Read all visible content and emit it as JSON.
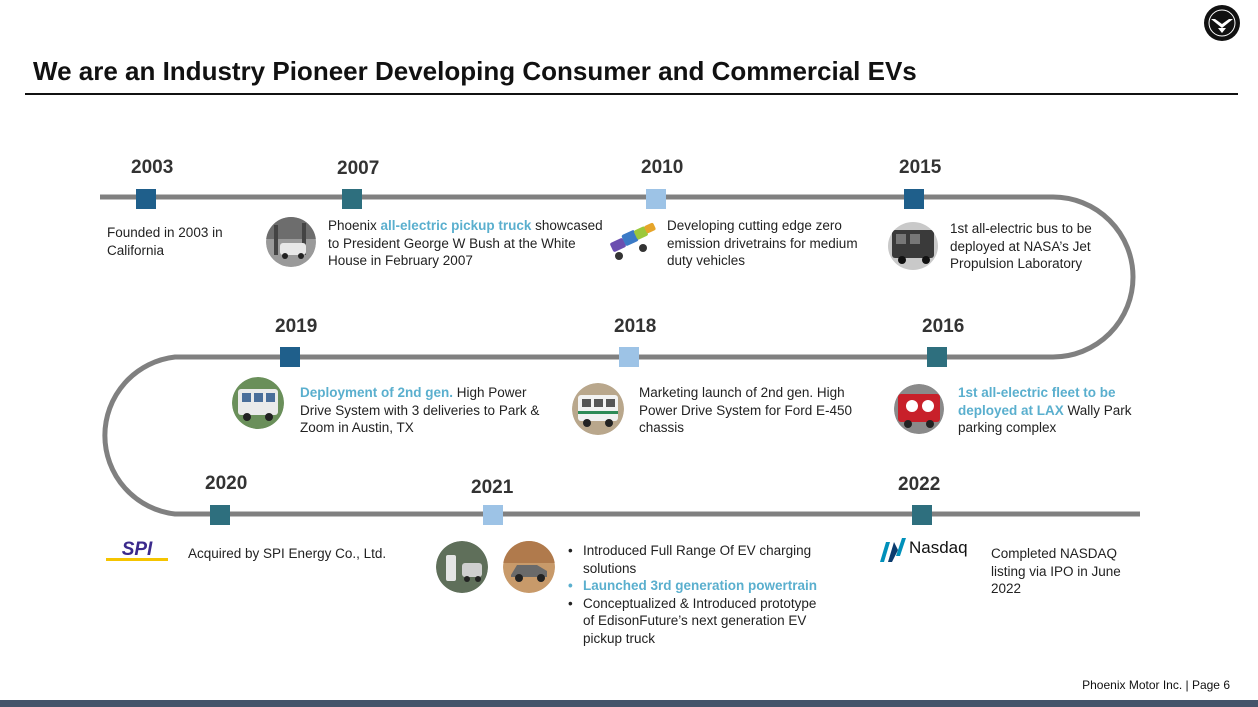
{
  "page": {
    "title": "We are an Industry Pioneer Developing Consumer and Commercial EVs",
    "footer": "Phoenix Motor Inc. | Page 6"
  },
  "colors": {
    "track": "#808080",
    "marker_dark": "#1f5f8b",
    "marker_teal": "#2e6f7e",
    "marker_light": "#9dc3e6",
    "highlight": "#5aafce",
    "footer_bar": "#44546a"
  },
  "logos": {
    "spi": "SPI",
    "nasdaq": "Nasdaq"
  },
  "milestones": {
    "y2003": {
      "year": "2003",
      "text": "Founded in 2003 in California"
    },
    "y2007": {
      "year": "2007",
      "pre": "Phoenix ",
      "highlight": "all-electric pickup truck",
      "post": " showcased to President George W Bush at the White House in February 2007",
      "icon": "pickup-truck-photo"
    },
    "y2010": {
      "year": "2010",
      "text": "Developing cutting edge zero emission drivetrains for medium duty vehicles",
      "icon": "drivetrain-photo"
    },
    "y2015": {
      "year": "2015",
      "text": "1st all-electric bus to be deployed at NASA’s Jet Propulsion Laboratory",
      "icon": "bus-photo"
    },
    "y2016": {
      "year": "2016",
      "highlight": "1st all-electric fleet to be deployed at LAX",
      "post": " Wally Park parking complex",
      "icon": "red-shuttle-photo"
    },
    "y2018": {
      "year": "2018",
      "text": "Marketing launch of 2nd gen. High Power Drive System for Ford E-450 chassis",
      "icon": "shuttle-bus-photo"
    },
    "y2019": {
      "year": "2019",
      "highlight": "Deployment of 2nd gen.",
      "post": " High Power Drive System with 3 deliveries to Park & Zoom in Austin, TX",
      "icon": "delivery-bus-photo"
    },
    "y2020": {
      "year": "2020",
      "text": "Acquired by SPI Energy Co., Ltd."
    },
    "y2021": {
      "year": "2021",
      "bullet1": "Introduced Full Range Of EV charging solutions",
      "bullet2": "Launched 3rd generation powertrain",
      "bullet3": "Conceptualized & Introduced prototype of EdisonFuture’s next generation EV pickup truck",
      "icon1": "charging-station-photo",
      "icon2": "pickup-prototype-photo"
    },
    "y2022": {
      "year": "2022",
      "text": "Completed NASDAQ listing via IPO in June 2022"
    }
  }
}
